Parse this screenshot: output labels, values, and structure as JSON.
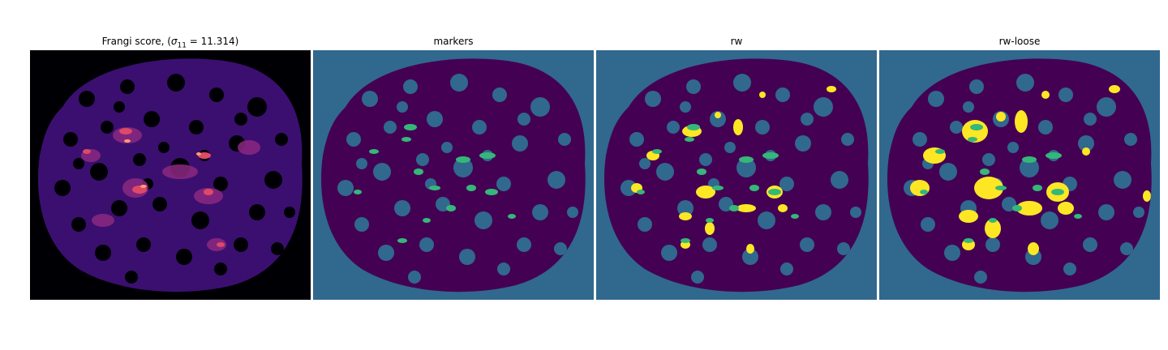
{
  "panels": [
    {
      "title_prefix": "Frangi score, (",
      "title_symbol": "σ",
      "title_sub": "11",
      "title_suffix": " = 11.314)",
      "colormap": "magma"
    },
    {
      "title": "markers",
      "colormap": "viridis"
    },
    {
      "title": "rw",
      "colormap": "viridis"
    },
    {
      "title": "rw-loose",
      "colormap": "viridis"
    }
  ],
  "colors": {
    "magma_background": "#000004",
    "magma_low": "#3b0f70",
    "magma_mid": "#8c2981",
    "magma_high": "#de4968",
    "magma_peak": "#fe9f6d",
    "viridis_background": "#31688e",
    "viridis_foreground": "#440154",
    "viridis_marker": "#35b779",
    "viridis_bright": "#fde725"
  }
}
